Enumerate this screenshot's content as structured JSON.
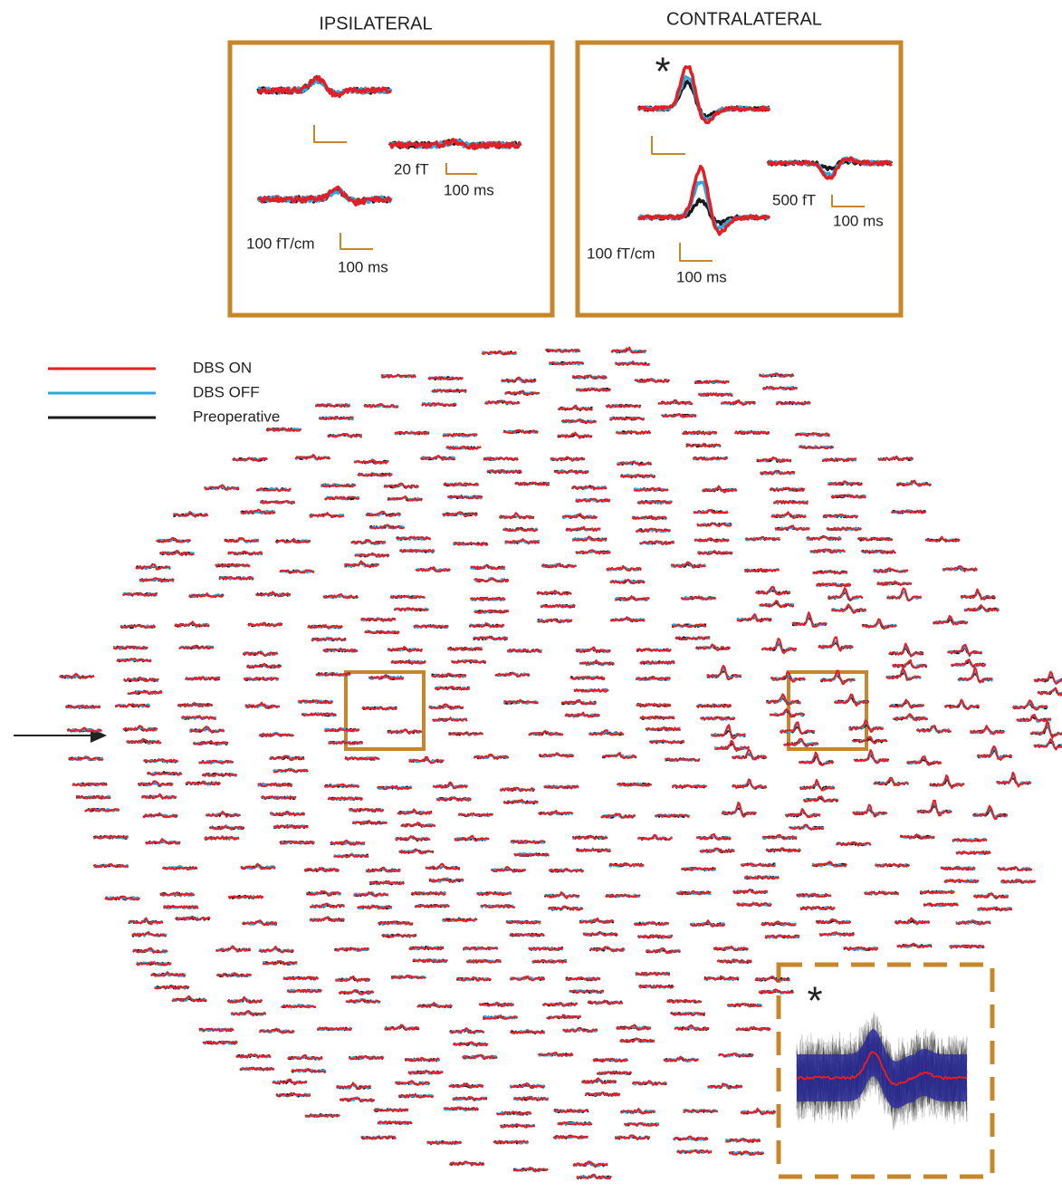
{
  "panels": [
    {
      "title": "IPSILATERAL",
      "magnetometer_scale": "20 fT",
      "magnetometer_time": "100 ms",
      "gradiometer_scale": "100 fT/cm",
      "gradiometer_time": "100 ms"
    },
    {
      "title": "CONTRALATERAL",
      "marker": "*",
      "magnetometer_scale": "500 fT",
      "magnetometer_time": "100 ms",
      "gradiometer_scale": "100 fT/cm",
      "gradiometer_time": "100 ms"
    }
  ],
  "legend": [
    {
      "name": "DBS ON",
      "color": "#e31e24"
    },
    {
      "name": "DBS OFF",
      "color": "#29a9e0"
    },
    {
      "name": "Preoperative",
      "color": "#1a1a1a"
    }
  ],
  "inset": {
    "marker": "*"
  }
}
